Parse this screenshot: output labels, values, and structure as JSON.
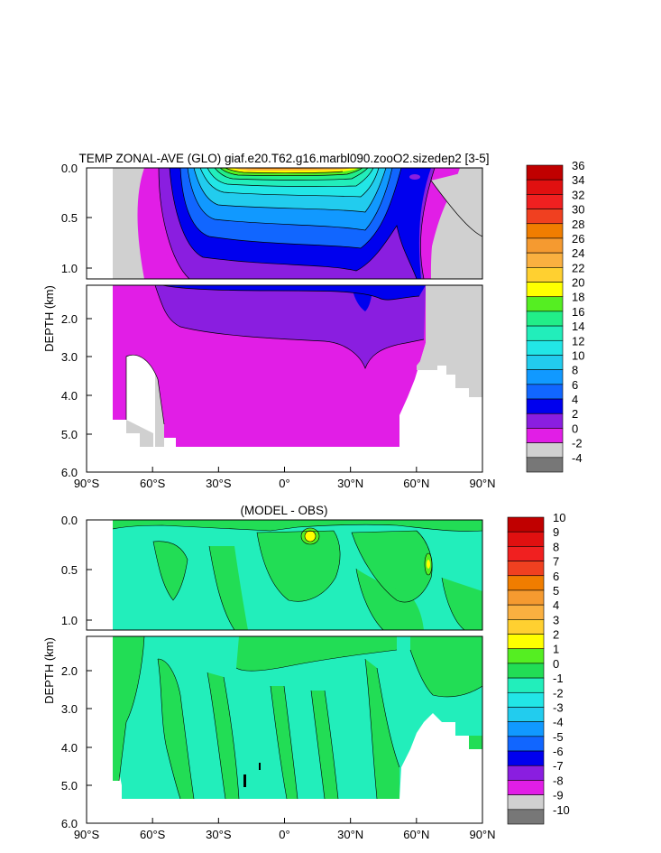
{
  "chart_data": [
    {
      "type": "heatmap",
      "title": "TEMP ZONAL-AVE (GLO) giaf.e20.T62.g16.marbl090.zooO2.sizedep2 [3-5]",
      "ylabel": "DEPTH (km)",
      "xlim": [
        -90,
        90
      ],
      "xticks": [
        "90°S",
        "60°S",
        "30°S",
        "0°",
        "30°N",
        "60°N",
        "90°N"
      ],
      "yticks_upper": [
        "0.0",
        "0.5",
        "1.0"
      ],
      "yticks_lower": [
        "2.0",
        "3.0",
        "4.0",
        "5.0",
        "6.0"
      ],
      "colorbar_levels": [
        "36",
        "34",
        "32",
        "30",
        "28",
        "26",
        "24",
        "22",
        "20",
        "18",
        "16",
        "14",
        "12",
        "10",
        "8",
        "6",
        "4",
        "2",
        "0",
        "-2",
        "-4"
      ],
      "colorbar_colors": [
        "#c00000",
        "#e01010",
        "#f02020",
        "#f04020",
        "#f07d00",
        "#f59a30",
        "#fab040",
        "#ffd030",
        "#ffff00",
        "#55ee22",
        "#22ee88",
        "#22eebb",
        "#22e6e6",
        "#22ccee",
        "#1199ff",
        "#1166ff",
        "#0000ee",
        "#8a1ee0",
        "#e11ee6",
        "#d0d0d0",
        "#777777"
      ]
    },
    {
      "type": "heatmap",
      "title": "(MODEL - OBS)",
      "ylabel": "DEPTH (km)",
      "xlim": [
        -90,
        90
      ],
      "xticks": [
        "90°S",
        "60°S",
        "30°S",
        "0°",
        "30°N",
        "60°N",
        "90°N"
      ],
      "yticks_upper": [
        "0.0",
        "0.5",
        "1.0"
      ],
      "yticks_lower": [
        "2.0",
        "3.0",
        "4.0",
        "5.0",
        "6.0"
      ],
      "colorbar_levels": [
        "10",
        "9",
        "8",
        "7",
        "6",
        "5",
        "4",
        "3",
        "2",
        "1",
        "0",
        "-1",
        "-2",
        "-3",
        "-4",
        "-5",
        "-6",
        "-7",
        "-8",
        "-9",
        "-10"
      ],
      "colorbar_colors": [
        "#c00000",
        "#e01010",
        "#f02020",
        "#f04020",
        "#f07d00",
        "#f59a30",
        "#fab040",
        "#ffd030",
        "#ffff00",
        "#55ee22",
        "#22dd55",
        "#22eebb",
        "#22e6e6",
        "#22ccee",
        "#1199ff",
        "#1166ff",
        "#0000ee",
        "#8a1ee0",
        "#e11ee6",
        "#d0d0d0",
        "#777777"
      ]
    }
  ]
}
